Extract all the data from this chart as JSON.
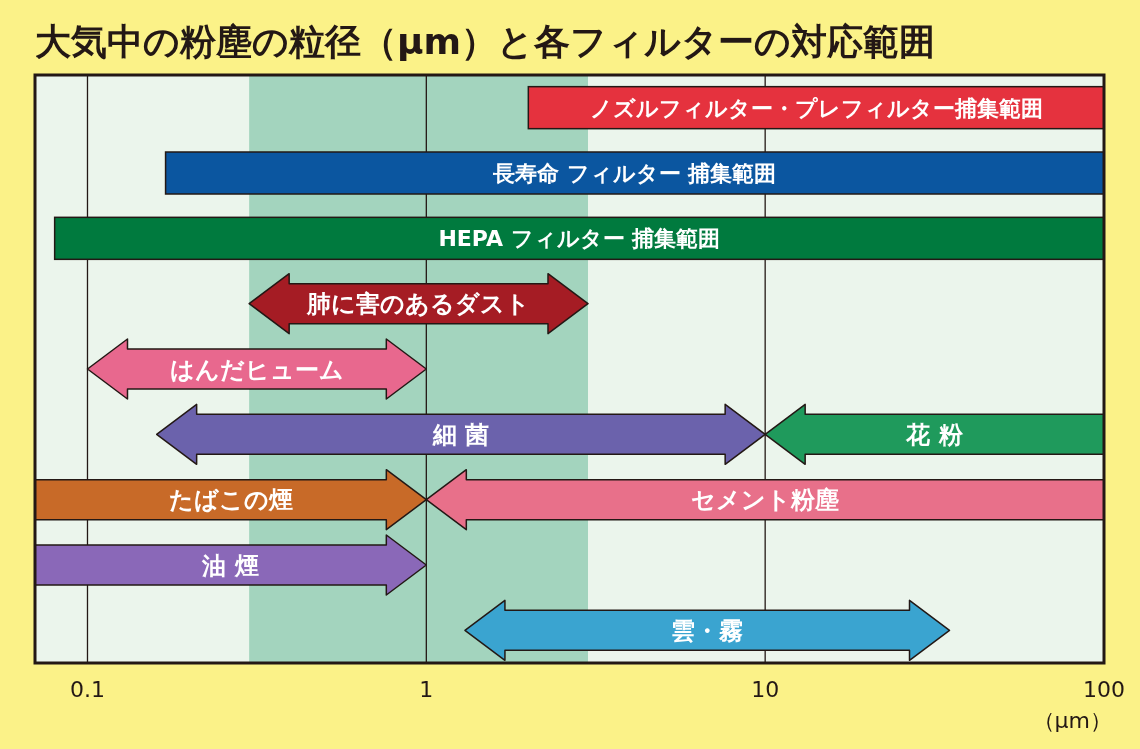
{
  "chart_data": {
    "type": "bar",
    "orientation": "horizontal",
    "log": "x",
    "title": "大気中の粉塵の粒径（μm）と各フィルターの対応範囲",
    "xlabel": "（μm）",
    "categories": [
      null,
      null,
      null,
      null,
      null,
      null,
      null,
      null,
      null
    ],
    "xlim": [
      0.07,
      100
    ],
    "xticks": [
      0.1,
      1,
      10,
      100
    ],
    "grid": "x",
    "tick_labels": "x",
    "bands": [
      {
        "axis": "x",
        "from": 0.3,
        "to": 3,
        "color": "#a3d4be"
      }
    ],
    "series": [
      {
        "name": "ノズルフィルター・プレフィルター捕集範囲",
        "color": "#e5323e",
        "base": [
          2,
          null,
          null,
          null,
          null,
          null,
          null,
          null,
          null
        ],
        "values": [
          98,
          null,
          null,
          null,
          null,
          null,
          null,
          null,
          null
        ]
      },
      {
        "name": "長寿命 フィルター 捕集範囲",
        "color": "#0b56a0",
        "base": [
          null,
          0.17,
          null,
          null,
          null,
          null,
          null,
          null,
          null
        ],
        "values": [
          null,
          99.83,
          null,
          null,
          null,
          null,
          null,
          null,
          null
        ]
      },
      {
        "name": "HEPA フィルター 捕集範囲",
        "color": "#007a3e",
        "base": [
          null,
          null,
          0.08,
          null,
          null,
          null,
          null,
          null,
          null
        ],
        "values": [
          null,
          null,
          99.92,
          null,
          null,
          null,
          null,
          null,
          null
        ]
      },
      {
        "name": "肺に害のあるダスト",
        "color": "#a51c24",
        "marker": "triangle",
        "base": [
          null,
          null,
          null,
          0.3,
          null,
          null,
          null,
          null,
          null
        ],
        "values": [
          null,
          null,
          null,
          2.7,
          null,
          null,
          null,
          null,
          null
        ]
      },
      {
        "name": "はんだヒューム",
        "color": "#e8688e",
        "marker": "triangle",
        "base": [
          null,
          null,
          null,
          null,
          0.1,
          null,
          null,
          null,
          null
        ],
        "values": [
          null,
          null,
          null,
          null,
          0.9,
          null,
          null,
          null,
          null
        ]
      },
      {
        "name": "細 菌",
        "color": "#6b62ac",
        "marker": "triangle",
        "base": [
          null,
          null,
          null,
          null,
          null,
          0.16,
          null,
          null,
          null
        ],
        "values": [
          null,
          null,
          null,
          null,
          null,
          9.84,
          null,
          null,
          null
        ]
      },
      {
        "name": "花 粉",
        "color": "#1f9a5c",
        "marker": "triangle",
        "base": [
          null,
          null,
          null,
          null,
          null,
          10,
          null,
          null,
          null
        ],
        "values": [
          null,
          null,
          null,
          null,
          null,
          90,
          null,
          null,
          null
        ]
      },
      {
        "name": "たばこの煙",
        "color": "#c86a28",
        "marker": "triangle",
        "base": [
          null,
          null,
          null,
          null,
          null,
          null,
          0.07,
          null,
          null
        ],
        "values": [
          null,
          null,
          null,
          null,
          null,
          null,
          0.93,
          null,
          null
        ]
      },
      {
        "name": "セメント粉塵",
        "color": "#e8708a",
        "marker": "triangle",
        "base": [
          null,
          null,
          null,
          null,
          null,
          null,
          1,
          null,
          null
        ],
        "values": [
          null,
          null,
          null,
          null,
          null,
          null,
          99,
          null,
          null
        ]
      },
      {
        "name": "油 煙",
        "color": "#8a68b8",
        "marker": "triangle",
        "base": [
          null,
          null,
          null,
          null,
          null,
          null,
          null,
          0.07,
          null
        ],
        "values": [
          null,
          null,
          null,
          null,
          null,
          null,
          null,
          0.93,
          null
        ]
      },
      {
        "name": "雲・霧",
        "color": "#3aa4d0",
        "marker": "triangle",
        "base": [
          null,
          null,
          null,
          null,
          null,
          null,
          null,
          null,
          1.3
        ],
        "values": [
          null,
          null,
          null,
          null,
          null,
          null,
          null,
          null,
          33.7
        ]
      }
    ]
  }
}
